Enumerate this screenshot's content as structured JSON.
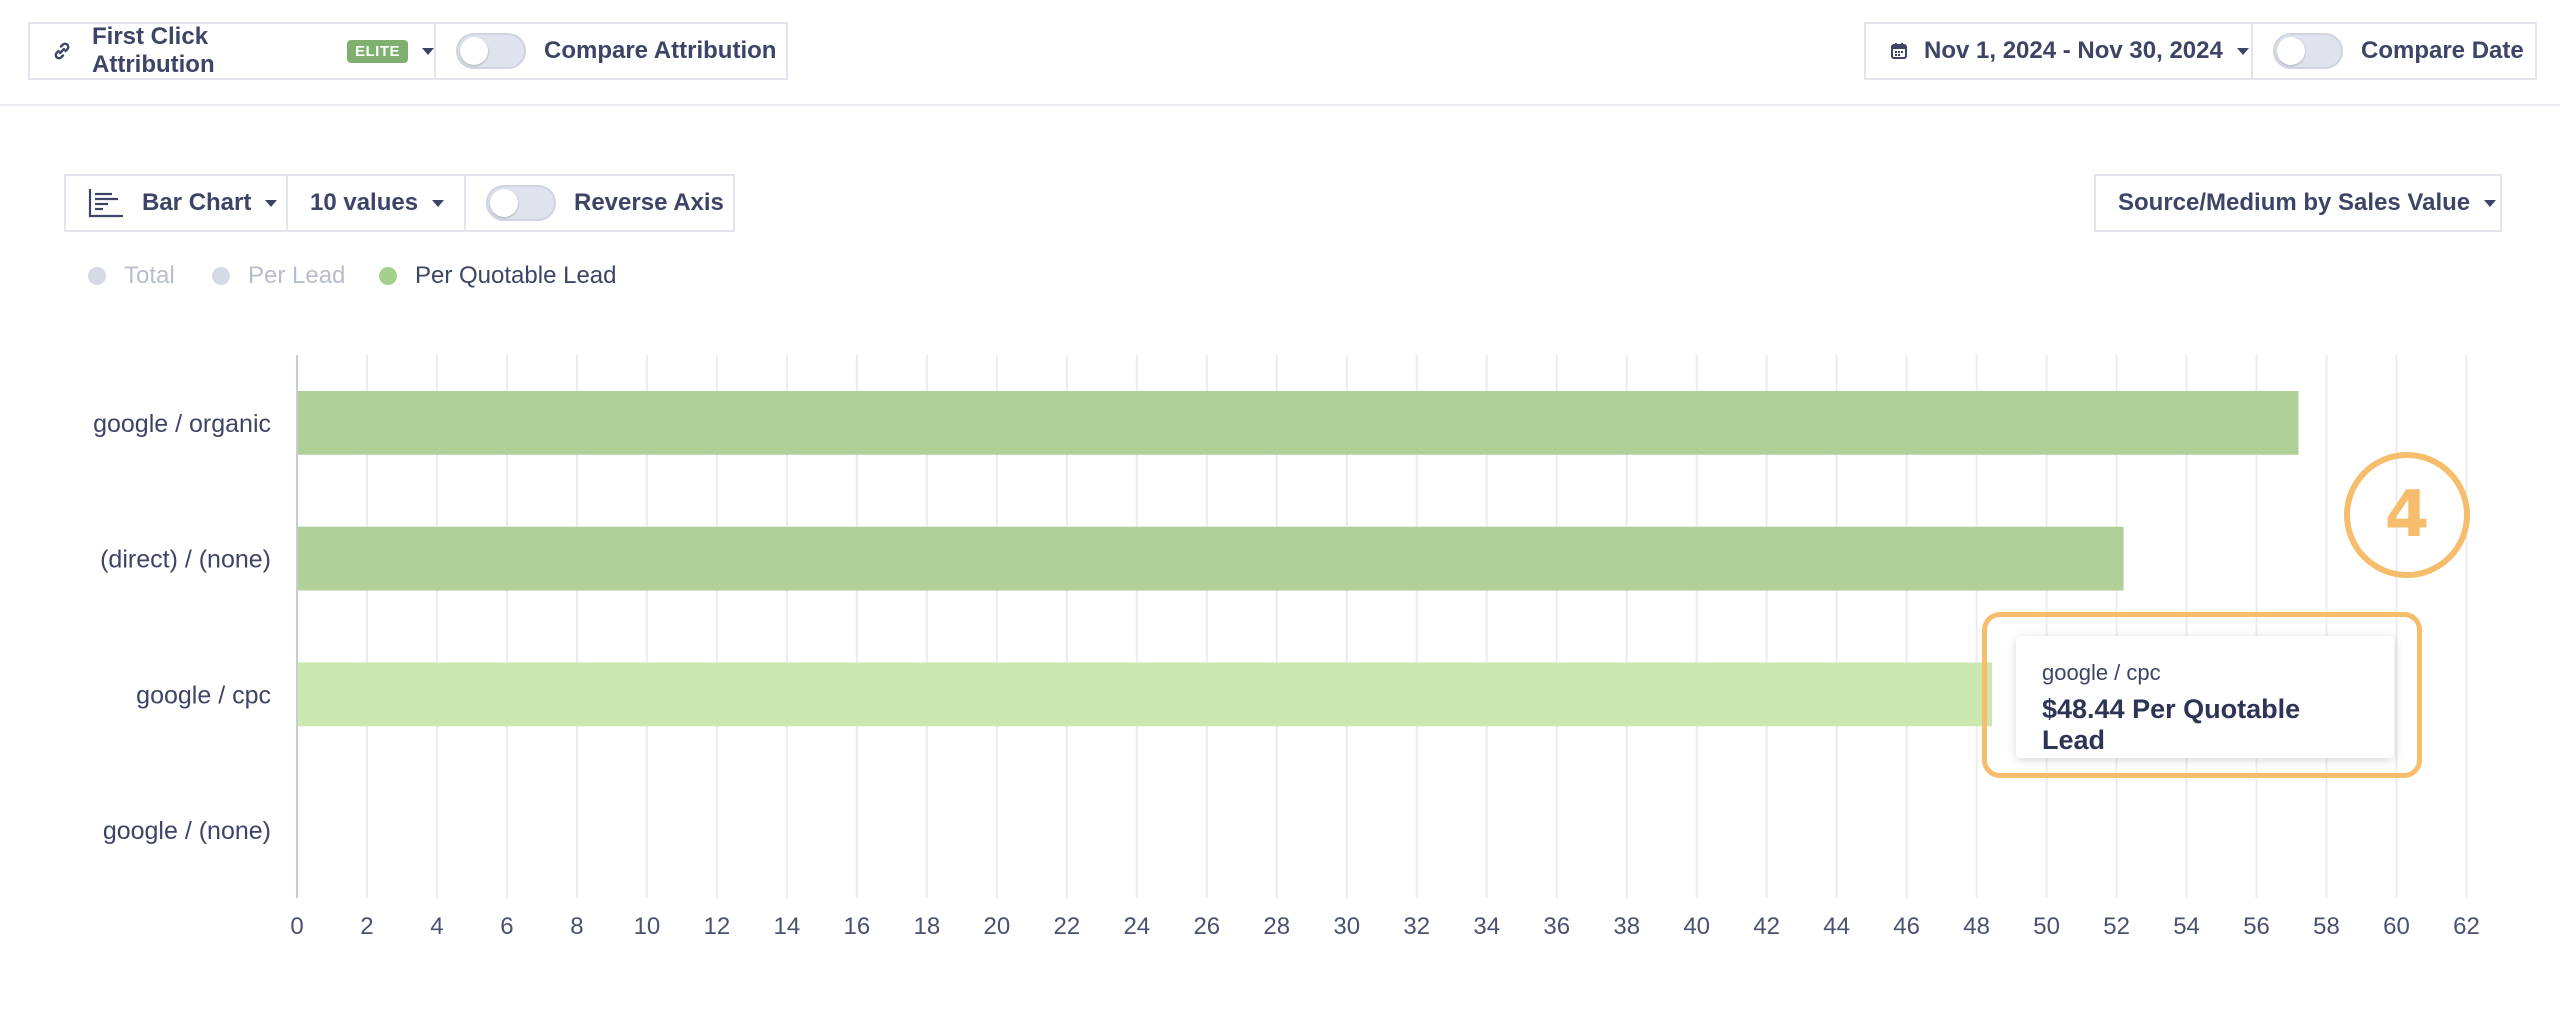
{
  "toolbar": {
    "attribution": {
      "label": "First Click Attribution",
      "badge": "ELITE"
    },
    "compare_attribution": {
      "label": "Compare Attribution",
      "on": false
    },
    "date_range": {
      "label": "Nov 1, 2024 - Nov 30, 2024"
    },
    "compare_date": {
      "label": "Compare Date",
      "on": false
    }
  },
  "controls": {
    "chart_type": {
      "label": "Bar Chart"
    },
    "values_count": {
      "label": "10 values"
    },
    "reverse_axis": {
      "label": "Reverse Axis",
      "on": false
    },
    "grouping": {
      "label": "Source/Medium by Sales Value"
    }
  },
  "legend": [
    {
      "label": "Total",
      "color": "#d6dae4",
      "active": false
    },
    {
      "label": "Per Lead",
      "color": "#d6dae4",
      "active": false
    },
    {
      "label": "Per Quotable Lead",
      "color": "#a6cf8e",
      "active": true
    }
  ],
  "chart_data": {
    "type": "bar",
    "orientation": "horizontal",
    "categories": [
      "google / organic",
      "(direct) / (none)",
      "google / cpc",
      "google / (none)"
    ],
    "series": [
      {
        "name": "Per Quotable Lead",
        "values": [
          57.2,
          52.2,
          48.44,
          0
        ]
      }
    ],
    "x_ticks": [
      0,
      2,
      4,
      6,
      8,
      10,
      12,
      14,
      16,
      18,
      20,
      22,
      24,
      26,
      28,
      30,
      32,
      34,
      36,
      38,
      40,
      42,
      44,
      46,
      48,
      50,
      52,
      54,
      56,
      58,
      60,
      62
    ],
    "xlim": [
      0,
      62.5
    ],
    "grid": true,
    "colors": {
      "bar": "#b0d098",
      "bar_hover": "#cbe8b1",
      "grid": "#ececf0",
      "axis": "#c8ccd6"
    },
    "hovered_index": 2
  },
  "tooltip": {
    "category": "google / cpc",
    "value_text": "$48.44 Per Quotable Lead"
  },
  "annotation": {
    "step": "4",
    "color": "#f5bd6c"
  }
}
